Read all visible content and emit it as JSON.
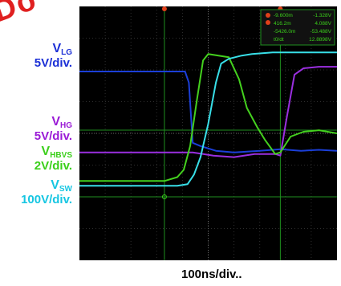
{
  "watermark": "Do",
  "channels": [
    {
      "name": "V",
      "sub": "LG",
      "scale": "5V/div.",
      "color": "#1b2fd6"
    },
    {
      "name": "V",
      "sub": "HG",
      "scale": "5V/div.",
      "color": "#9a1bd6"
    },
    {
      "name": "V",
      "sub": "HBVS",
      "scale": "2V/div.",
      "color": "#3bcf1b"
    },
    {
      "name": "V",
      "sub": "SW",
      "scale": "100V/div.",
      "color": "#16c6e2"
    }
  ],
  "readout": {
    "rows": [
      [
        "-9.600m",
        "-1.328V"
      ],
      [
        "416.2m",
        "4.088V"
      ],
      [
        "-5426.0m",
        "-53.488V"
      ],
      [
        "t0/dt",
        "12.8898V"
      ]
    ]
  },
  "chart_data": {
    "type": "line",
    "xlabel": "100ns/div..",
    "x_divisions": 10,
    "y_divisions": 8,
    "grid": true,
    "background": "#000000",
    "series": [
      {
        "name": "V_LG",
        "color": "#1b3fd8",
        "x": [
          0,
          4.1,
          4.25,
          4.4,
          4.7,
          5.3,
          6.0,
          7.0,
          7.8,
          8.6,
          9.3,
          10
        ],
        "y": [
          5.95,
          5.95,
          5.6,
          3.7,
          3.6,
          3.45,
          3.4,
          3.45,
          3.5,
          3.45,
          3.48,
          3.45
        ]
      },
      {
        "name": "V_HG",
        "color": "#9a2fe0",
        "x": [
          0,
          3.8,
          4.4,
          5.2,
          6.0,
          6.8,
          7.6,
          7.8,
          8.05,
          8.35,
          8.7,
          9.3,
          10
        ],
        "y": [
          3.4,
          3.4,
          3.4,
          3.3,
          3.25,
          3.35,
          3.35,
          3.3,
          4.5,
          5.85,
          6.05,
          6.1,
          6.1
        ]
      },
      {
        "name": "V_HBVS",
        "color": "#44d11e",
        "x": [
          0,
          3.3,
          3.8,
          4.05,
          4.3,
          4.55,
          4.8,
          5.0,
          5.8,
          6.2,
          6.5,
          6.9,
          7.2,
          7.6,
          7.8,
          8.2,
          8.7,
          9.3,
          10
        ],
        "y": [
          2.5,
          2.5,
          2.62,
          2.85,
          3.6,
          5.0,
          6.3,
          6.5,
          6.4,
          5.7,
          4.8,
          4.2,
          3.8,
          3.35,
          3.4,
          3.9,
          4.05,
          4.1,
          4.0
        ]
      },
      {
        "name": "V_SW",
        "color": "#38dfe8",
        "x": [
          0,
          3.8,
          4.2,
          4.45,
          4.7,
          5.0,
          5.3,
          5.5,
          5.8,
          6.3,
          6.7,
          7.5,
          8.5,
          10
        ],
        "y": [
          2.35,
          2.35,
          2.4,
          2.7,
          3.25,
          4.3,
          5.6,
          6.2,
          6.35,
          6.45,
          6.5,
          6.55,
          6.55,
          6.55
        ]
      }
    ],
    "cursors": {
      "vertical": [
        3.3,
        7.8
      ],
      "horizontal": [
        4.1,
        2.0
      ]
    }
  }
}
